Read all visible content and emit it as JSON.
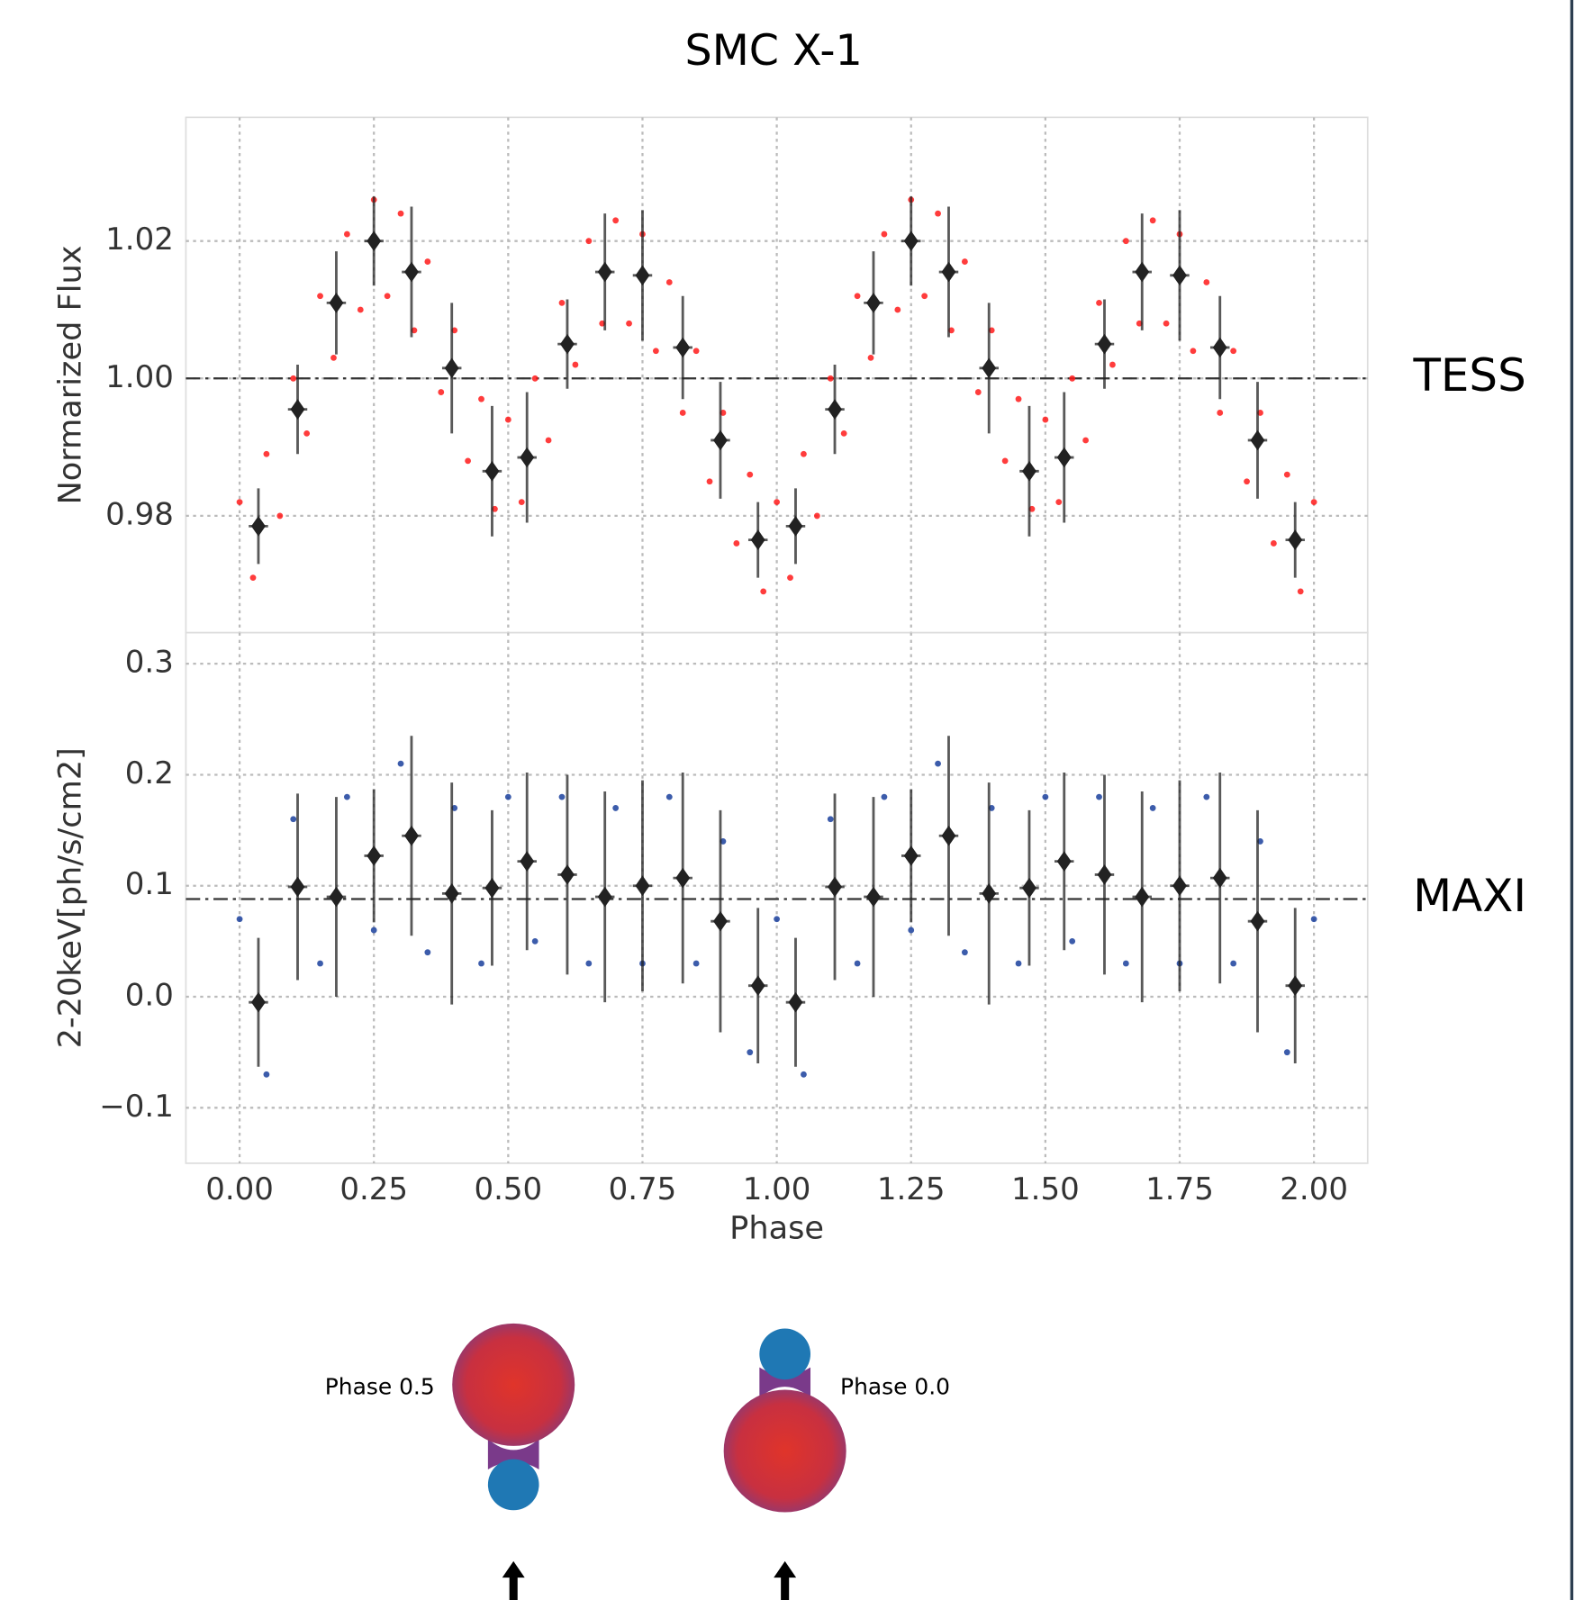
{
  "title": "SMC X-1",
  "chart_data": [
    {
      "type": "scatter",
      "ylabel": "Normarized Flux",
      "annotation": "TESS",
      "xlim": [
        -0.1,
        2.1
      ],
      "xticks": [
        0,
        0.25,
        0.5,
        0.75,
        1,
        1.25,
        1.5,
        1.75,
        2
      ],
      "ylim": [
        0.963,
        1.038
      ],
      "yticks": [
        0.98,
        {
          "value": 1.0,
          "label": "1.00"
        },
        1.02
      ],
      "grid": true,
      "reference_line": 1.0,
      "series": [
        {
          "color": "#ff1a1a",
          "x": [
            0,
            0.025,
            0.05,
            0.075,
            0.1,
            0.125,
            0.15,
            0.175,
            0.2,
            0.225,
            0.25,
            0.275,
            0.3,
            0.325,
            0.35,
            0.375,
            0.4,
            0.425,
            0.45,
            0.475,
            0.5,
            0.525,
            0.55,
            0.575,
            0.6,
            0.625,
            0.65,
            0.675,
            0.7,
            0.725,
            0.75,
            0.775,
            0.8,
            0.825,
            0.85,
            0.875,
            0.9,
            0.925,
            0.95,
            0.975,
            1,
            1.025,
            1.05,
            1.075,
            1.1,
            1.125,
            1.15,
            1.175,
            1.2,
            1.225,
            1.25,
            1.275,
            1.3,
            1.325,
            1.35,
            1.375,
            1.4,
            1.425,
            1.45,
            1.475,
            1.5,
            1.525,
            1.55,
            1.575,
            1.6,
            1.625,
            1.65,
            1.675,
            1.7,
            1.725,
            1.75,
            1.775,
            1.8,
            1.825,
            1.85,
            1.875,
            1.9,
            1.925,
            1.95,
            1.975,
            2
          ],
          "values": [
            0.982,
            0.971,
            0.989,
            0.98,
            1.0,
            0.992,
            1.012,
            1.003,
            1.021,
            1.01,
            1.026,
            1.012,
            1.024,
            1.007,
            1.017,
            0.998,
            1.007,
            0.988,
            0.997,
            0.981,
            0.994,
            0.982,
            1.0,
            0.991,
            1.011,
            1.002,
            1.02,
            1.008,
            1.023,
            1.008,
            1.021,
            1.004,
            1.014,
            0.995,
            1.004,
            0.985,
            0.995,
            0.976,
            0.986,
            0.969,
            0.982,
            0.971,
            0.989,
            0.98,
            1.0,
            0.992,
            1.012,
            1.003,
            1.021,
            1.01,
            1.026,
            1.012,
            1.024,
            1.007,
            1.017,
            0.998,
            1.007,
            0.988,
            0.997,
            0.981,
            0.994,
            0.982,
            1.0,
            0.991,
            1.011,
            1.002,
            1.02,
            1.008,
            1.023,
            1.008,
            1.021,
            1.004,
            1.014,
            0.995,
            1.004,
            0.985,
            0.995,
            0.976,
            0.986,
            0.969,
            0.982
          ]
        },
        {
          "color": "#222222",
          "xerr": 0.018,
          "x": [
            0.035,
            0.108,
            0.18,
            0.25,
            0.32,
            0.395,
            0.47,
            0.535,
            0.61,
            0.68,
            0.75,
            0.825,
            0.895,
            0.965,
            1.035,
            1.108,
            1.18,
            1.25,
            1.32,
            1.395,
            1.47,
            1.535,
            1.61,
            1.68,
            1.75,
            1.825,
            1.895,
            1.965
          ],
          "values": [
            0.9785,
            0.9955,
            1.011,
            1.02,
            1.0155,
            1.0015,
            0.9865,
            0.9885,
            1.005,
            1.0155,
            1.015,
            1.0045,
            0.991,
            0.9765,
            0.9785,
            0.9955,
            1.011,
            1.02,
            1.0155,
            1.0015,
            0.9865,
            0.9885,
            1.005,
            1.0155,
            1.015,
            1.0045,
            0.991,
            0.9765
          ],
          "yerr": [
            0.0055,
            0.0065,
            0.0075,
            0.0065,
            0.0095,
            0.0095,
            0.0095,
            0.0095,
            0.0065,
            0.0085,
            0.0095,
            0.0075,
            0.0085,
            0.0055,
            0.0055,
            0.0065,
            0.0075,
            0.0065,
            0.0095,
            0.0095,
            0.0095,
            0.0095,
            0.0065,
            0.0085,
            0.0095,
            0.0075,
            0.0085,
            0.0055
          ]
        }
      ]
    },
    {
      "type": "scatter",
      "ylabel": "2-20keV[ph/s/cm2]",
      "xlabel": "Phase",
      "annotation": "MAXI",
      "xlim": [
        -0.1,
        2.1
      ],
      "xticks": [
        {
          "value": 0,
          "label": "0.00"
        },
        {
          "value": 0.25,
          "label": "0.25"
        },
        {
          "value": 0.5,
          "label": "0.50"
        },
        {
          "value": 0.75,
          "label": "0.75"
        },
        {
          "value": 1,
          "label": "1.00"
        },
        {
          "value": 1.25,
          "label": "1.25"
        },
        {
          "value": 1.5,
          "label": "1.50"
        },
        {
          "value": 1.75,
          "label": "1.75"
        },
        {
          "value": 2,
          "label": "2.00"
        }
      ],
      "ylim": [
        -0.15,
        0.328
      ],
      "yticks": [
        {
          "value": -0.1,
          "label": "−0.1"
        },
        {
          "value": 0,
          "label": "0.0"
        },
        0.1,
        0.2,
        0.3
      ],
      "grid": true,
      "reference_line": 0.088,
      "series": [
        {
          "color": "#1a3f9c",
          "x": [
            0,
            0.05,
            0.1,
            0.15,
            0.2,
            0.25,
            0.3,
            0.35,
            0.4,
            0.45,
            0.5,
            0.55,
            0.6,
            0.65,
            0.7,
            0.75,
            0.8,
            0.85,
            0.9,
            0.95,
            1,
            1.05,
            1.1,
            1.15,
            1.2,
            1.25,
            1.3,
            1.35,
            1.4,
            1.45,
            1.5,
            1.55,
            1.6,
            1.65,
            1.7,
            1.75,
            1.8,
            1.85,
            1.9,
            1.95,
            2
          ],
          "values": [
            0.07,
            -0.07,
            0.16,
            0.03,
            0.18,
            0.06,
            0.21,
            0.04,
            0.17,
            0.03,
            0.18,
            0.05,
            0.18,
            0.03,
            0.17,
            0.03,
            0.18,
            0.03,
            0.14,
            -0.05,
            0.07,
            -0.07,
            0.16,
            0.03,
            0.18,
            0.06,
            0.21,
            0.04,
            0.17,
            0.03,
            0.18,
            0.05,
            0.18,
            0.03,
            0.17,
            0.03,
            0.18,
            0.03,
            0.14,
            -0.05,
            0.07
          ]
        },
        {
          "color": "#222222",
          "xerr": 0.018,
          "x": [
            0.035,
            0.108,
            0.18,
            0.25,
            0.32,
            0.395,
            0.47,
            0.535,
            0.61,
            0.68,
            0.75,
            0.825,
            0.895,
            0.965,
            1.035,
            1.108,
            1.18,
            1.25,
            1.32,
            1.395,
            1.47,
            1.535,
            1.61,
            1.68,
            1.75,
            1.825,
            1.895,
            1.965
          ],
          "values": [
            -0.005,
            0.099,
            0.09,
            0.127,
            0.145,
            0.093,
            0.098,
            0.122,
            0.11,
            0.09,
            0.1,
            0.107,
            0.068,
            0.01,
            -0.005,
            0.099,
            0.09,
            0.127,
            0.145,
            0.093,
            0.098,
            0.122,
            0.11,
            0.09,
            0.1,
            0.107,
            0.068,
            0.01
          ],
          "yerr": [
            0.058,
            0.084,
            0.09,
            0.06,
            0.09,
            0.1,
            0.07,
            0.08,
            0.09,
            0.095,
            0.095,
            0.095,
            0.1,
            0.07,
            0.058,
            0.084,
            0.09,
            0.06,
            0.09,
            0.1,
            0.07,
            0.08,
            0.09,
            0.095,
            0.095,
            0.095,
            0.1,
            0.07
          ]
        }
      ]
    }
  ],
  "diagram": {
    "labels": [
      "Phase 0.5",
      "Phase 0.0"
    ]
  }
}
